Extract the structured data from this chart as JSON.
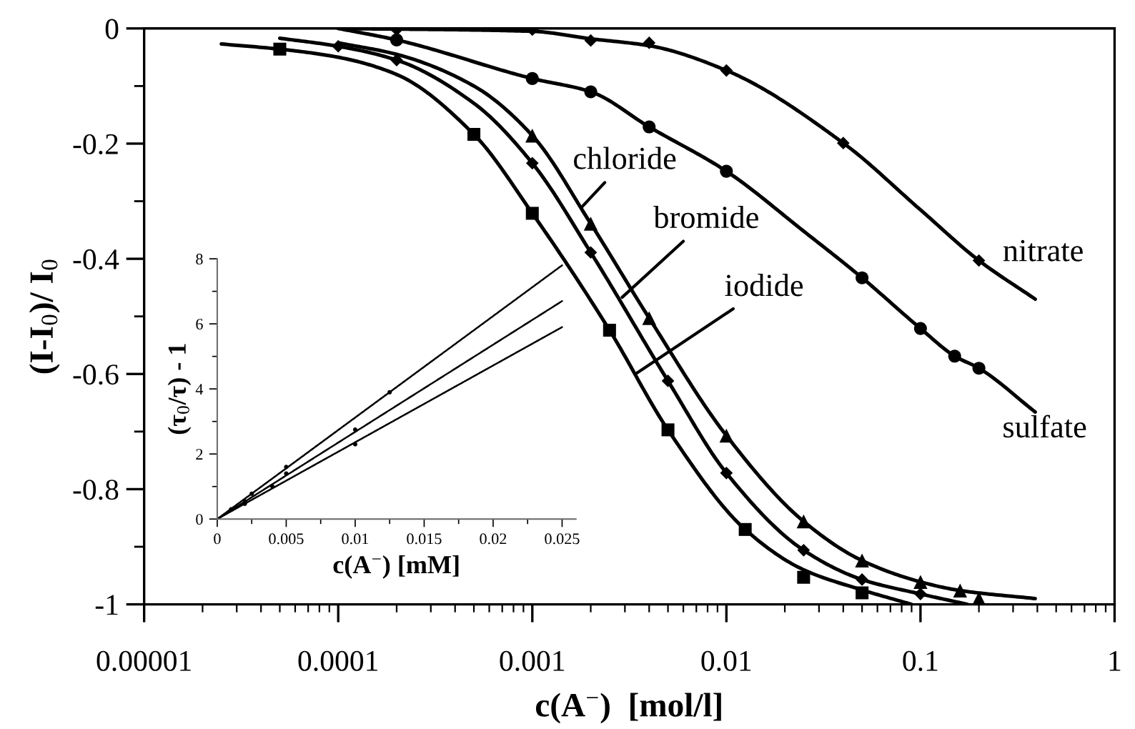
{
  "chart_data": [
    {
      "type": "scatter",
      "xlabel": "c(A$^{−}$)  [mol/l]",
      "ylabel": "(I-I$_{0}$)/ I$_{0}$",
      "log": "x",
      "xlim": [
        1e-05,
        1
      ],
      "ylim": [
        -1,
        0
      ],
      "xticks": [
        {
          "value": 1e-05,
          "label": "0.00001"
        },
        0.0001,
        0.001,
        0.01,
        0.1,
        1
      ],
      "yticks": [
        -1,
        -0.8,
        -0.6,
        -0.4,
        -0.2,
        0
      ],
      "series": [
        {
          "type": "line",
          "color": "#000000",
          "x": [
            2.5e-05,
            5e-05,
            0.0001,
            0.0002,
            0.0005,
            0.001,
            0.0025,
            0.005,
            0.0125,
            0.025,
            0.05,
            0.09
          ],
          "values": [
            -0.027,
            -0.036,
            -0.05,
            -0.08,
            -0.184,
            -0.321,
            -0.524,
            -0.697,
            -0.87,
            -0.94,
            -0.975,
            -1.0
          ]
        },
        {
          "type": "line",
          "color": "#000000",
          "x": [
            5e-05,
            0.0001,
            0.0002,
            0.0005,
            0.001,
            0.002,
            0.005,
            0.01,
            0.025,
            0.05,
            0.1,
            0.175
          ],
          "values": [
            -0.017,
            -0.031,
            -0.055,
            -0.13,
            -0.234,
            -0.389,
            -0.612,
            -0.772,
            -0.906,
            -0.957,
            -0.982,
            -1.0
          ]
        },
        {
          "type": "line",
          "color": "#000000",
          "x": [
            0.0001,
            0.0002,
            0.0005,
            0.001,
            0.002,
            0.004,
            0.01,
            0.025,
            0.05,
            0.1,
            0.16,
            0.39
          ],
          "values": [
            -0.025,
            -0.045,
            -0.1,
            -0.186,
            -0.339,
            -0.503,
            -0.707,
            -0.856,
            -0.924,
            -0.961,
            -0.976,
            -0.99
          ]
        },
        {
          "type": "line",
          "color": "#000000",
          "x": [
            0.0001,
            0.0002,
            0.001,
            0.002,
            0.004,
            0.01,
            0.025,
            0.05,
            0.1,
            0.15,
            0.2,
            0.39
          ],
          "values": [
            0,
            -0.02,
            -0.087,
            -0.11,
            -0.171,
            -0.248,
            -0.352,
            -0.433,
            -0.521,
            -0.569,
            -0.59,
            -0.666
          ]
        },
        {
          "type": "line",
          "color": "#000000",
          "x": [
            0.0001,
            0.001,
            0.002,
            0.004,
            0.01,
            0.04,
            0.1,
            0.2,
            0.39
          ],
          "values": [
            0,
            -0.005,
            -0.018,
            -0.03,
            -0.073,
            -0.199,
            -0.315,
            -0.403,
            -0.47
          ]
        },
        {
          "marker": "square",
          "color": "#000000",
          "x": [
            5e-05,
            0.0005,
            0.001,
            0.0025,
            0.005,
            0.0125,
            0.025,
            0.05
          ],
          "values": [
            -0.036,
            -0.184,
            -0.321,
            -0.524,
            -0.697,
            -0.87,
            -0.953,
            -0.98
          ]
        },
        {
          "marker": "diamond",
          "color": "#000000",
          "x": [
            0.0001,
            0.0002,
            0.001,
            0.002,
            0.005,
            0.01,
            0.025,
            0.05,
            0.1
          ],
          "values": [
            -0.031,
            -0.055,
            -0.234,
            -0.389,
            -0.612,
            -0.772,
            -0.906,
            -0.957,
            -0.982
          ]
        },
        {
          "marker": "triangle",
          "color": "#000000",
          "x": [
            0.001,
            0.002,
            0.004,
            0.01,
            0.025,
            0.05,
            0.1,
            0.16,
            0.2
          ],
          "values": [
            -0.186,
            -0.339,
            -0.503,
            -0.707,
            -0.856,
            -0.924,
            -0.961,
            -0.976,
            -0.99
          ]
        },
        {
          "marker": "circle",
          "color": "#000000",
          "x": [
            0.0002,
            0.001,
            0.002,
            0.004,
            0.01,
            0.05,
            0.1,
            0.15,
            0.2
          ],
          "values": [
            -0.02,
            -0.087,
            -0.11,
            -0.171,
            -0.248,
            -0.433,
            -0.521,
            -0.569,
            -0.59
          ]
        },
        {
          "marker": "diamond",
          "color": "#000000",
          "x": [
            0.0002,
            0.001,
            0.002,
            0.004,
            0.01,
            0.04,
            0.2
          ],
          "values": [
            -0.002,
            -0.002,
            -0.021,
            -0.025,
            -0.073,
            -0.199,
            -0.403
          ]
        }
      ],
      "annotations": [
        {
          "text": "chloride",
          "x": 0.0018,
          "y": -0.31
        },
        {
          "text": "bromide",
          "x": 0.0029,
          "y": -0.467
        },
        {
          "text": "iodide",
          "x": 0.0034,
          "y": -0.6
        },
        {
          "text": "nitrate",
          "x": 0.2,
          "y": -0.403
        },
        {
          "text": "sulfate",
          "x": 0.2,
          "y": -0.59
        }
      ]
    },
    {
      "type": "line",
      "xlabel": "c(A$^{−}$) [mM]",
      "ylabel": "(τ$_{0}$/τ) - 1",
      "xlim": [
        0,
        0.026
      ],
      "ylim": [
        0,
        8
      ],
      "xticks": [
        0,
        0.005,
        0.01,
        0.015,
        0.02,
        0.025
      ],
      "yticks": [
        0,
        2,
        4,
        6,
        8
      ],
      "series": [
        {
          "color": "#000000",
          "x": [
            0,
            0.025
          ],
          "values": [
            0,
            7.8
          ]
        },
        {
          "color": "#000000",
          "x": [
            0,
            0.025
          ],
          "values": [
            0,
            6.7
          ]
        },
        {
          "color": "#000000",
          "x": [
            0,
            0.025
          ],
          "values": [
            0,
            5.9
          ]
        },
        {
          "type": "scatter",
          "marker": "circle",
          "color": "#000000",
          "x": [
            0.001,
            0.0025,
            0.005,
            0.0125
          ],
          "values": [
            0.3,
            0.78,
            1.6,
            3.9
          ]
        },
        {
          "type": "scatter",
          "marker": "circle",
          "color": "#000000",
          "x": [
            0.002,
            0.005,
            0.01
          ],
          "values": [
            0.55,
            1.4,
            2.75
          ]
        },
        {
          "type": "scatter",
          "marker": "circle",
          "color": "#000000",
          "x": [
            0.002,
            0.004,
            0.01
          ],
          "values": [
            0.47,
            1.0,
            2.3
          ]
        }
      ]
    }
  ]
}
